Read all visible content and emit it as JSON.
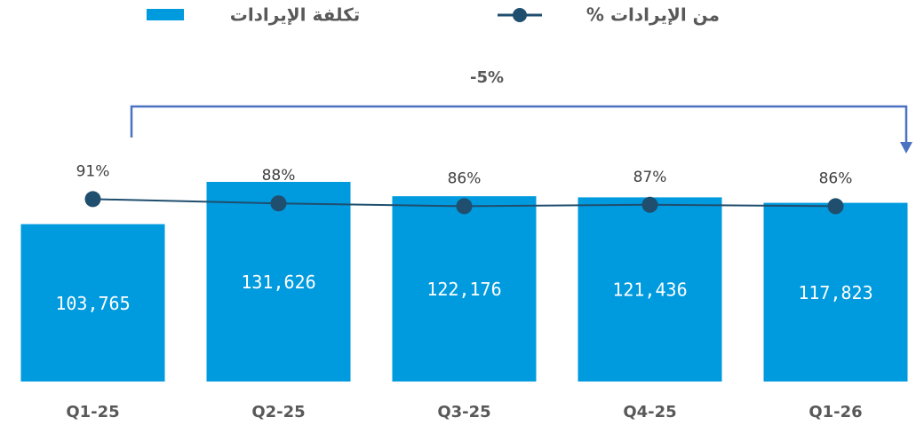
{
  "chart_data": {
    "type": "bar",
    "categories": [
      "Q1-25",
      "Q2-25",
      "Q3-25",
      "Q4-25",
      "Q1-26"
    ],
    "series": [
      {
        "name": "تكلفة الإيرادات",
        "type": "bar",
        "color": "#009ade",
        "values": [
          103765,
          131626,
          122176,
          121436,
          117823
        ],
        "value_labels": [
          "103,765",
          "131,626",
          "122,176",
          "121,436",
          "117,823"
        ]
      },
      {
        "name": "% من الإيرادات",
        "type": "line",
        "color": "#1f4e6e",
        "values": [
          91,
          88,
          86,
          87,
          86
        ],
        "value_labels": [
          "91%",
          "88%",
          "86%",
          "87%",
          "86%"
        ]
      }
    ],
    "annotation": "-5%"
  }
}
